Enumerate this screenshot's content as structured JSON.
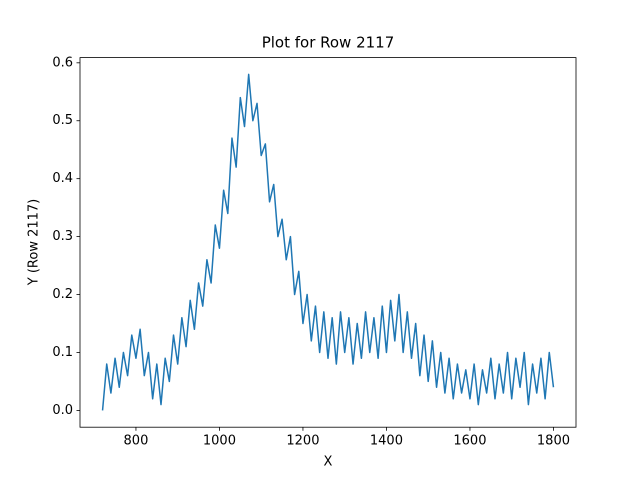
{
  "chart_data": {
    "type": "line",
    "title": "Plot for Row 2117",
    "x_label": "X",
    "y_label": "Y (Row 2117)",
    "x": [
      720,
      730,
      740,
      750,
      760,
      770,
      780,
      790,
      800,
      810,
      820,
      830,
      840,
      850,
      860,
      870,
      880,
      890,
      900,
      910,
      920,
      930,
      940,
      950,
      960,
      970,
      980,
      990,
      1000,
      1010,
      1020,
      1030,
      1040,
      1050,
      1060,
      1070,
      1080,
      1090,
      1100,
      1110,
      1120,
      1130,
      1140,
      1150,
      1160,
      1170,
      1180,
      1190,
      1200,
      1210,
      1220,
      1230,
      1240,
      1250,
      1260,
      1270,
      1280,
      1290,
      1300,
      1310,
      1320,
      1330,
      1340,
      1350,
      1360,
      1370,
      1380,
      1390,
      1400,
      1410,
      1420,
      1430,
      1440,
      1450,
      1460,
      1470,
      1480,
      1490,
      1500,
      1510,
      1520,
      1530,
      1540,
      1550,
      1560,
      1570,
      1580,
      1590,
      1600,
      1610,
      1620,
      1630,
      1640,
      1650,
      1660,
      1670,
      1680,
      1690,
      1700,
      1710,
      1720,
      1730,
      1740,
      1750,
      1760,
      1770,
      1780,
      1790,
      1800
    ],
    "series": [
      {
        "name": "Row 2117",
        "color": "#1f77b4",
        "values": [
          0.0,
          0.08,
          0.03,
          0.09,
          0.04,
          0.1,
          0.06,
          0.13,
          0.09,
          0.14,
          0.06,
          0.1,
          0.02,
          0.08,
          0.01,
          0.09,
          0.05,
          0.13,
          0.08,
          0.16,
          0.11,
          0.19,
          0.14,
          0.22,
          0.18,
          0.26,
          0.22,
          0.32,
          0.28,
          0.38,
          0.34,
          0.47,
          0.42,
          0.54,
          0.49,
          0.58,
          0.5,
          0.53,
          0.44,
          0.46,
          0.36,
          0.39,
          0.3,
          0.33,
          0.26,
          0.3,
          0.2,
          0.24,
          0.15,
          0.2,
          0.12,
          0.18,
          0.1,
          0.17,
          0.09,
          0.16,
          0.08,
          0.17,
          0.1,
          0.16,
          0.08,
          0.15,
          0.09,
          0.17,
          0.1,
          0.16,
          0.09,
          0.18,
          0.1,
          0.19,
          0.12,
          0.2,
          0.1,
          0.17,
          0.09,
          0.15,
          0.06,
          0.13,
          0.05,
          0.12,
          0.04,
          0.1,
          0.03,
          0.09,
          0.02,
          0.08,
          0.03,
          0.07,
          0.02,
          0.08,
          0.01,
          0.07,
          0.03,
          0.09,
          0.02,
          0.08,
          0.03,
          0.1,
          0.02,
          0.09,
          0.04,
          0.1,
          0.01,
          0.08,
          0.03,
          0.09,
          0.02,
          0.1,
          0.04
        ]
      }
    ],
    "xlim": [
      666,
      1854
    ],
    "ylim": [
      -0.029,
      0.609
    ],
    "xticks": [
      800,
      1000,
      1200,
      1400,
      1600,
      1800
    ],
    "yticks": [
      {
        "value": 0,
        "label": "0.0"
      },
      0.1,
      0.2,
      0.3,
      0.4,
      0.5,
      0.6
    ],
    "grid": false
  }
}
